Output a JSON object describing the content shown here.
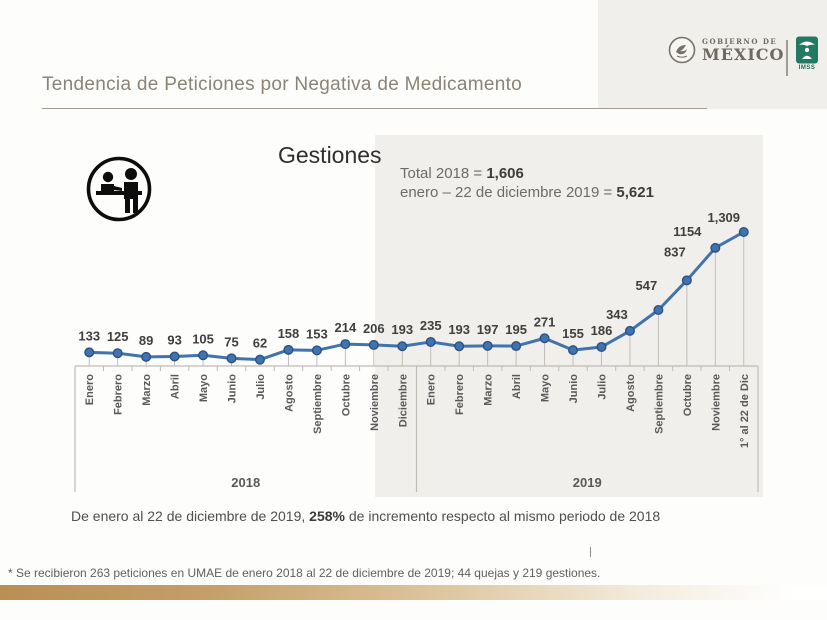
{
  "slide": {
    "title": "Tendencia de Peticiones por Negativa de Medicamento",
    "statement": {
      "part1": "De enero al 22 de diciembre de 2019, ",
      "highlight": "258%",
      "part2": " de incremento respecto al mismo periodo de 2018"
    },
    "footnote": "* Se recibieron 263 peticiones en UMAE de enero 2018 al 22 de diciembre de 2019;  44 quejas y 219 gestiones."
  },
  "header": {
    "gobierno_line1": "GOBIERNO DE",
    "gobierno_line2": "MÉXICO",
    "imss_label": "IMSS"
  },
  "chart": {
    "title": "Gestiones",
    "totals": [
      {
        "label": "Total 2018 = ",
        "value": "1,606"
      },
      {
        "label": "enero – 22 de diciembre 2019 = ",
        "value": "5,621"
      }
    ]
  },
  "chart_data": {
    "type": "line",
    "title": "Gestiones",
    "categories": [
      "Enero",
      "Febrero",
      "Marzo",
      "Abril",
      "Mayo",
      "Junio",
      "Julio",
      "Agosto",
      "Septiembre",
      "Octubre",
      "Noviembre",
      "Diciembre",
      "Enero",
      "Febrero",
      "Marzo",
      "Abril",
      "Mayo",
      "Junio",
      "Julio",
      "Agosto",
      "Septiembre",
      "Octubre",
      "Noviembre",
      "1° al 22 de Dic"
    ],
    "series": [
      {
        "name": "Gestiones",
        "values": [
          133,
          125,
          89,
          93,
          105,
          75,
          62,
          158,
          153,
          214,
          206,
          193,
          235,
          193,
          197,
          195,
          271,
          155,
          186,
          343,
          547,
          837,
          1154,
          1309
        ]
      }
    ],
    "data_labels": [
      "133",
      "125",
      "89",
      "93",
      "105",
      "75",
      "62",
      "158",
      "153",
      "214",
      "206",
      "193",
      "235",
      "193",
      "197",
      "195",
      "271",
      "155",
      "186",
      "343",
      "547",
      "837",
      "1154",
      "1,309"
    ],
    "group_labels": [
      "2018",
      "2019"
    ],
    "group_split_index": 12,
    "ylim": [
      0,
      1400
    ],
    "grid": false,
    "legend": "none",
    "line_color": "#4173ad",
    "marker_edge_color": "#2d5186",
    "axis_color": "#c0bcb5",
    "label_color": "#3f3f3f",
    "tick_label_color": "#595959"
  }
}
